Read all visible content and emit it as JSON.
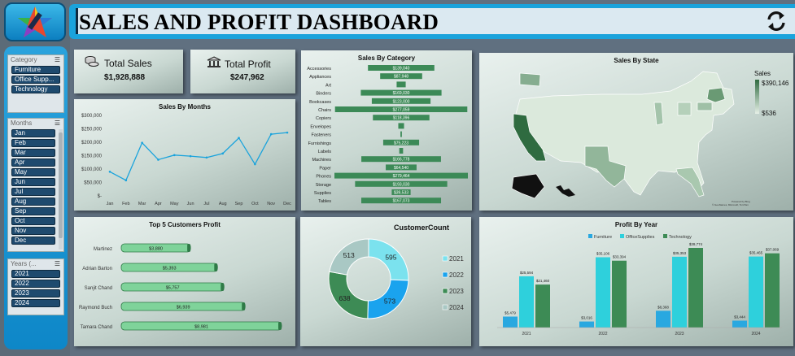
{
  "header": {
    "title": "SALES AND PROFIT DASHBOARD",
    "refresh_icon": "refresh-icon",
    "logo_icon": "star-logo-icon"
  },
  "slicers": {
    "category": {
      "title": "Category",
      "items": [
        "Furniture",
        "Office Supp...",
        "Technology"
      ]
    },
    "months": {
      "title": "Months",
      "items": [
        "Jan",
        "Feb",
        "Mar",
        "Apr",
        "May",
        "Jun",
        "Jul",
        "Aug",
        "Sep",
        "Oct",
        "Nov",
        "Dec"
      ]
    },
    "years": {
      "title": "Years (...",
      "items": [
        "2021",
        "2022",
        "2023",
        "2024"
      ]
    }
  },
  "kpis": {
    "sales": {
      "label": "Total Sales",
      "value": "$1,928,888",
      "icon": "coins-icon"
    },
    "profit": {
      "label": "Total Profit",
      "value": "$247,962",
      "icon": "bank-icon"
    }
  },
  "colors": {
    "accent": "#1aa3dc",
    "bar_green": "#3c8a57",
    "blue": "#29a8e0",
    "cyan": "#2ed0dc",
    "green": "#3d8b55",
    "dark_navy": "#0e2a40"
  },
  "charts": {
    "months": {
      "title": "Sales By Months",
      "type": "line",
      "categories": [
        "Jan",
        "Feb",
        "Mar",
        "Apr",
        "May",
        "Jun",
        "Jul",
        "Aug",
        "Sep",
        "Oct",
        "Nov",
        "Dec"
      ],
      "values": [
        90000,
        58000,
        198000,
        135000,
        152000,
        148000,
        143000,
        158000,
        216000,
        118000,
        230000,
        236000
      ],
      "yticks": [
        "$300,000",
        "$250,000",
        "$200,000",
        "$150,000",
        "$100,000",
        "$50,000",
        "$-"
      ],
      "ylim": [
        0,
        300000
      ]
    },
    "category": {
      "title": "Sales By Category",
      "type": "bar",
      "categories": [
        "Accessories",
        "Appliances",
        "Art",
        "Binders",
        "Bookcases",
        "Chairs",
        "Copiers",
        "Envelopes",
        "Fasteners",
        "Furnishings",
        "Labels",
        "Machines",
        "Paper",
        "Phones",
        "Storage",
        "Supplies",
        "Tables"
      ],
      "values": [
        139040,
        87948,
        19000,
        169030,
        123000,
        277059,
        118396,
        12000,
        3000,
        75223,
        8000,
        166778,
        64540,
        279464,
        193030,
        39533,
        167073
      ],
      "labels": [
        "$139,040",
        "$87,948",
        "",
        "$169,030",
        "$123,000",
        "$277,059",
        "$118,396",
        "",
        "",
        "$75,223",
        "",
        "$166,778",
        "$64,540",
        "$279,464",
        "$193,030",
        "$39,533",
        "$167,073"
      ]
    },
    "state": {
      "title": "Sales By State",
      "legend_title": "Sales",
      "legend_max": "$390,146",
      "legend_min": "$536",
      "credit_line1": "Powered by Bing",
      "credit_line2": "© GeoNames, Microsoft, TomTom"
    },
    "customers": {
      "title": "Top 5 Customers Profit",
      "type": "bar",
      "categories": [
        "Martinez",
        "Adrian Barton",
        "Sanjit Chand",
        "Raymond Buch",
        "Tamara Chand"
      ],
      "values": [
        3880,
        5393,
        5757,
        6939,
        8981
      ],
      "labels": [
        "$3,880",
        "$5,393",
        "$5,757",
        "$6,939",
        "$8,981"
      ]
    },
    "customer_count": {
      "title": "CustomerCount",
      "type": "pie",
      "labels": [
        "2021",
        "2022",
        "2023",
        "2024"
      ],
      "values": [
        595,
        573,
        638,
        513
      ]
    },
    "profit_year": {
      "title": "Profit By Year",
      "type": "bar",
      "categories": [
        "2021",
        "2022",
        "2023",
        "2024"
      ],
      "series": [
        {
          "name": "Furniture",
          "values": [
            5479,
            3016,
            8368,
            3444
          ],
          "labels": [
            "$5,479",
            "$3,016",
            "$8,368",
            "$3,444"
          ]
        },
        {
          "name": "OfficeSupplies",
          "values": [
            25594,
            35106,
            35353,
            35465
          ],
          "labels": [
            "$25,594",
            "$35,106",
            "$35,353",
            "$35,465"
          ]
        },
        {
          "name": "Technology",
          "values": [
            21460,
            33394,
            39774,
            37069
          ],
          "labels": [
            "$21,460",
            "$33,394",
            "$39,774",
            "$37,069"
          ]
        }
      ]
    }
  }
}
